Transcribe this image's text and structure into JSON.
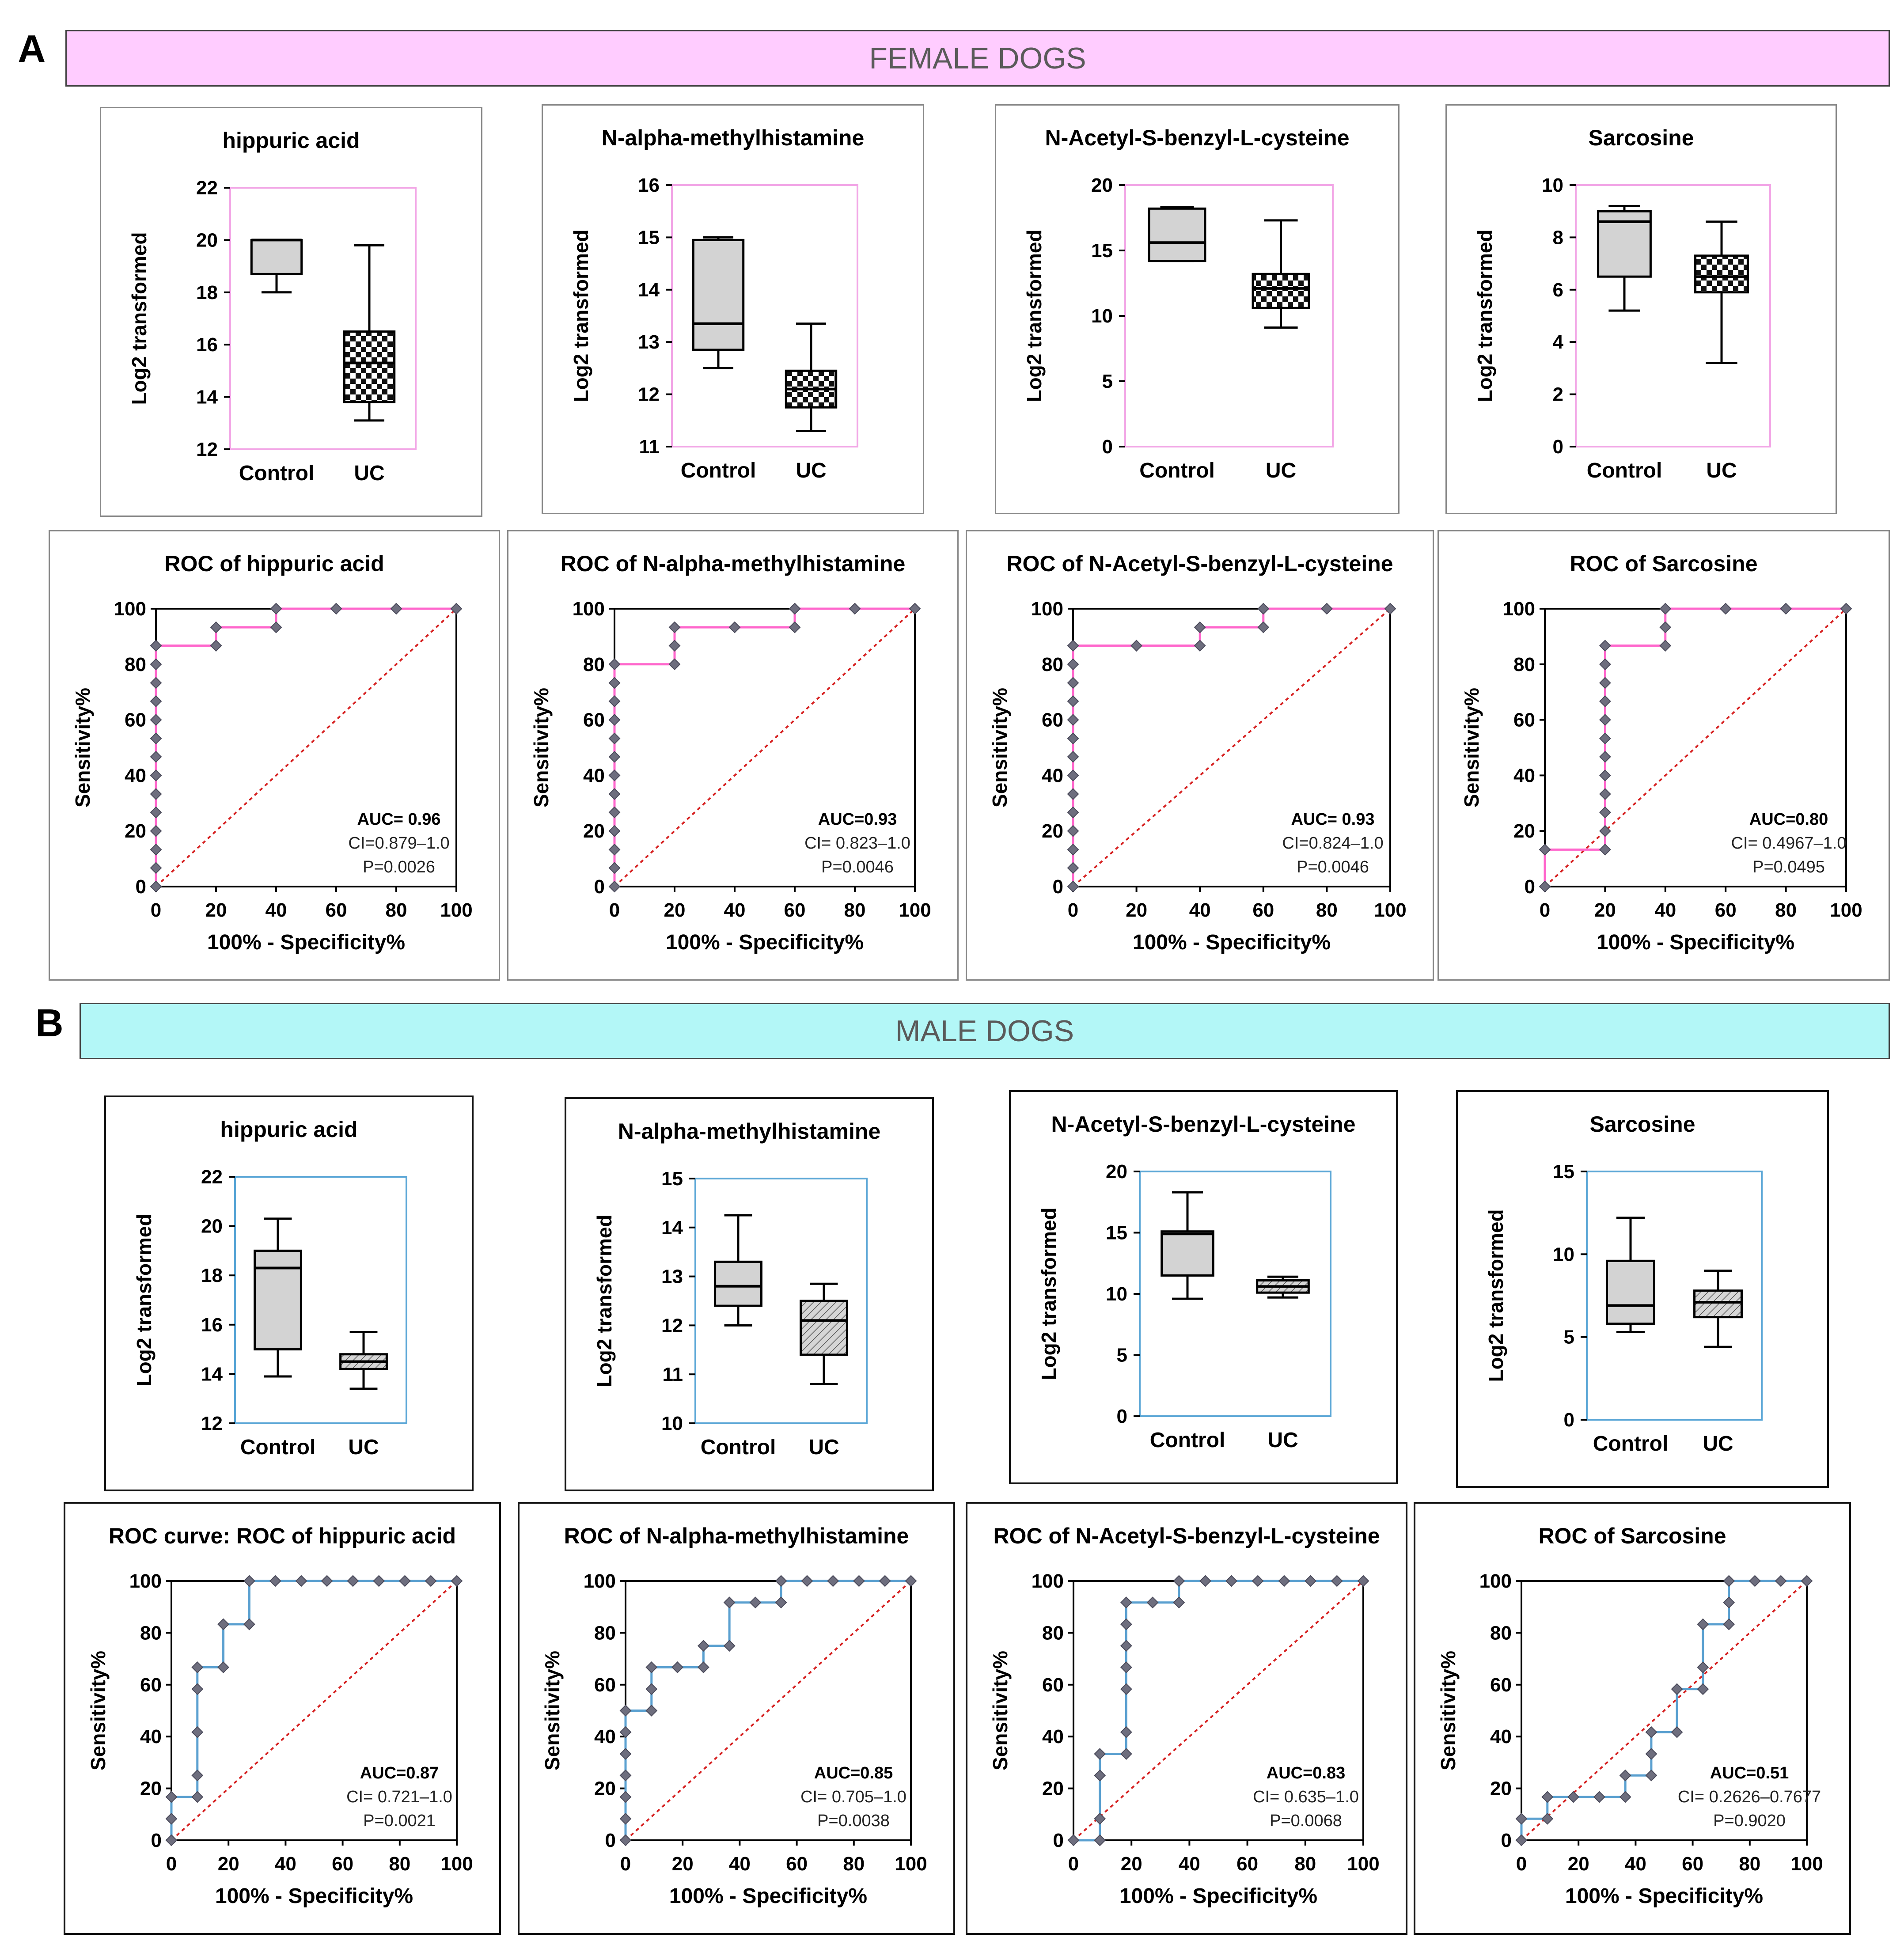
{
  "sections": {
    "A": {
      "letter": "A",
      "title": "FEMALE DOGS",
      "color": "#ffccff",
      "frame_color": "#f2a6e6",
      "curve_color": "#ff66cc"
    },
    "B": {
      "letter": "B",
      "title": "MALE DOGS",
      "color": "#b3f7f7",
      "frame_color": "#5aa6d6",
      "curve_color": "#5aa0d0"
    }
  },
  "chart_data": [
    {
      "id": "A-box-1",
      "section": "A",
      "type": "box",
      "title": "hippuric acid",
      "ylabel": "Log2 transformed",
      "ylim": [
        12,
        22
      ],
      "yticks": [
        12,
        14,
        16,
        18,
        20,
        22
      ],
      "categories": [
        "Control",
        "UC"
      ],
      "boxes": [
        {
          "name": "Control",
          "min": 18.0,
          "q1": 18.7,
          "median": 20.0,
          "q3": 20.0,
          "max": 20.0,
          "fill": "solid"
        },
        {
          "name": "UC",
          "min": 13.1,
          "q1": 13.8,
          "median": 15.3,
          "q3": 16.5,
          "max": 19.8,
          "fill": "checker"
        }
      ]
    },
    {
      "id": "A-box-2",
      "section": "A",
      "type": "box",
      "title": "N-alpha-methylhistamine",
      "ylabel": "Log2 transformed",
      "ylim": [
        11,
        16
      ],
      "yticks": [
        11,
        12,
        13,
        14,
        15,
        16
      ],
      "categories": [
        "Control",
        "UC"
      ],
      "boxes": [
        {
          "name": "Control",
          "min": 12.5,
          "q1": 12.85,
          "median": 13.35,
          "q3": 14.95,
          "max": 15.0,
          "fill": "solid"
        },
        {
          "name": "UC",
          "min": 11.3,
          "q1": 11.75,
          "median": 12.1,
          "q3": 12.45,
          "max": 13.35,
          "fill": "checker"
        }
      ]
    },
    {
      "id": "A-box-3",
      "section": "A",
      "type": "box",
      "title": "N-Acetyl-S-benzyl-L-cysteine",
      "ylabel": "Log2 transformed",
      "ylim": [
        0,
        20
      ],
      "yticks": [
        0,
        5,
        10,
        15,
        20
      ],
      "categories": [
        "Control",
        "UC"
      ],
      "boxes": [
        {
          "name": "Control",
          "min": 14.2,
          "q1": 14.2,
          "median": 15.6,
          "q3": 18.2,
          "max": 18.3,
          "fill": "solid"
        },
        {
          "name": "UC",
          "min": 9.1,
          "q1": 10.6,
          "median": 12.1,
          "q3": 13.2,
          "max": 17.3,
          "fill": "checker"
        }
      ]
    },
    {
      "id": "A-box-4",
      "section": "A",
      "type": "box",
      "title": "Sarcosine",
      "ylabel": "Log2 transformed",
      "ylim": [
        0,
        10
      ],
      "yticks": [
        0,
        2,
        4,
        6,
        8,
        10
      ],
      "categories": [
        "Control",
        "UC"
      ],
      "boxes": [
        {
          "name": "Control",
          "min": 5.2,
          "q1": 6.5,
          "median": 8.6,
          "q3": 9.0,
          "max": 9.2,
          "fill": "solid"
        },
        {
          "name": "UC",
          "min": 3.2,
          "q1": 5.9,
          "median": 6.5,
          "q3": 7.3,
          "max": 8.6,
          "fill": "checker"
        }
      ]
    },
    {
      "id": "A-roc-1",
      "section": "A",
      "type": "roc",
      "title": "ROC of hippuric acid",
      "xlabel": "100% - Specificity%",
      "ylabel": "Sensitivity%",
      "xlim": [
        0,
        100
      ],
      "ylim": [
        0,
        100
      ],
      "ticks": [
        0,
        20,
        40,
        60,
        80,
        100
      ],
      "auc": "AUC= 0.96",
      "ci": "CI=0.879–1.0",
      "p": "P=0.0026",
      "x": [
        0,
        0,
        0,
        0,
        0,
        0,
        0,
        0,
        0,
        0,
        0,
        0,
        0,
        0,
        20,
        20,
        40,
        40,
        60,
        80,
        100
      ],
      "y": [
        0,
        6.7,
        13.3,
        20,
        26.7,
        33.3,
        40,
        46.7,
        53.3,
        60,
        66.7,
        73.3,
        80,
        86.7,
        86.7,
        93.3,
        93.3,
        100,
        100,
        100,
        100
      ]
    },
    {
      "id": "A-roc-2",
      "section": "A",
      "type": "roc",
      "title": "ROC of N-alpha-methylhistamine",
      "xlabel": "100% - Specificity%",
      "ylabel": "Sensitivity%",
      "xlim": [
        0,
        100
      ],
      "ylim": [
        0,
        100
      ],
      "ticks": [
        0,
        20,
        40,
        60,
        80,
        100
      ],
      "auc": "AUC=0.93",
      "ci": "CI= 0.823–1.0",
      "p": "P=0.0046",
      "x": [
        0,
        0,
        0,
        0,
        0,
        0,
        0,
        0,
        0,
        0,
        0,
        0,
        0,
        20,
        20,
        20,
        40,
        60,
        60,
        60,
        80,
        100
      ],
      "y": [
        0,
        6.7,
        13.3,
        20,
        26.7,
        33.3,
        40,
        46.7,
        53.3,
        60,
        66.7,
        73.3,
        80,
        80,
        86.7,
        93.3,
        93.3,
        93.3,
        100,
        100,
        100,
        100
      ]
    },
    {
      "id": "A-roc-3",
      "section": "A",
      "type": "roc",
      "title": "ROC of N-Acetyl-S-benzyl-L-cysteine",
      "xlabel": "100% - Specificity%",
      "ylabel": "Sensitivity%",
      "xlim": [
        0,
        100
      ],
      "ylim": [
        0,
        100
      ],
      "ticks": [
        0,
        20,
        40,
        60,
        80,
        100
      ],
      "auc": "AUC= 0.93",
      "ci": "CI=0.824–1.0",
      "p": "P=0.0046",
      "x": [
        0,
        0,
        0,
        0,
        0,
        0,
        0,
        0,
        0,
        0,
        0,
        0,
        0,
        0,
        20,
        40,
        40,
        60,
        60,
        80,
        100
      ],
      "y": [
        0,
        6.7,
        13.3,
        20,
        26.7,
        33.3,
        40,
        46.7,
        53.3,
        60,
        66.7,
        73.3,
        80,
        86.7,
        86.7,
        86.7,
        93.3,
        93.3,
        100,
        100,
        100
      ]
    },
    {
      "id": "A-roc-4",
      "section": "A",
      "type": "roc",
      "title": "ROC of Sarcosine",
      "xlabel": "100% - Specificity%",
      "ylabel": "Sensitivity%",
      "xlim": [
        0,
        100
      ],
      "ylim": [
        0,
        100
      ],
      "ticks": [
        0,
        20,
        40,
        60,
        80,
        100
      ],
      "auc": "AUC=0.80",
      "ci": "CI= 0.4967–1.0",
      "p": "P=0.0495",
      "x": [
        0,
        0,
        20,
        20,
        20,
        20,
        20,
        20,
        20,
        20,
        20,
        20,
        20,
        20,
        40,
        40,
        40,
        60,
        80,
        100
      ],
      "y": [
        0,
        13.3,
        13.3,
        20,
        26.7,
        33.3,
        40,
        46.7,
        53.3,
        60,
        66.7,
        73.3,
        80,
        86.7,
        86.7,
        93.3,
        100,
        100,
        100,
        100
      ]
    },
    {
      "id": "B-box-1",
      "section": "B",
      "type": "box",
      "title": "hippuric acid",
      "ylabel": "Log2 transformed",
      "ylim": [
        12,
        22
      ],
      "yticks": [
        12,
        14,
        16,
        18,
        20,
        22
      ],
      "categories": [
        "Control",
        "UC"
      ],
      "boxes": [
        {
          "name": "Control",
          "min": 13.9,
          "q1": 15.0,
          "median": 18.3,
          "q3": 19.0,
          "max": 20.3,
          "fill": "solid"
        },
        {
          "name": "UC",
          "min": 13.4,
          "q1": 14.2,
          "median": 14.5,
          "q3": 14.8,
          "max": 15.7,
          "fill": "hatch"
        }
      ]
    },
    {
      "id": "B-box-2",
      "section": "B",
      "type": "box",
      "title": "N-alpha-methylhistamine",
      "ylabel": "Log2 transformed",
      "ylim": [
        10,
        15
      ],
      "yticks": [
        10,
        11,
        12,
        13,
        14,
        15
      ],
      "categories": [
        "Control",
        "UC"
      ],
      "boxes": [
        {
          "name": "Control",
          "min": 12.0,
          "q1": 12.4,
          "median": 12.8,
          "q3": 13.3,
          "max": 14.25,
          "fill": "solid"
        },
        {
          "name": "UC",
          "min": 10.8,
          "q1": 11.4,
          "median": 12.1,
          "q3": 12.5,
          "max": 12.85,
          "fill": "hatch"
        }
      ]
    },
    {
      "id": "B-box-3",
      "section": "B",
      "type": "box",
      "title": "N-Acetyl-S-benzyl-L-cysteine",
      "ylabel": "Log2 transformed",
      "ylim": [
        0,
        20
      ],
      "yticks": [
        0,
        5,
        10,
        15,
        20
      ],
      "categories": [
        "Control",
        "UC"
      ],
      "boxes": [
        {
          "name": "Control",
          "min": 9.6,
          "q1": 11.5,
          "median": 14.9,
          "q3": 15.1,
          "max": 18.3,
          "fill": "solid"
        },
        {
          "name": "UC",
          "min": 9.7,
          "q1": 10.1,
          "median": 10.6,
          "q3": 11.1,
          "max": 11.4,
          "fill": "hatch"
        }
      ]
    },
    {
      "id": "B-box-4",
      "section": "B",
      "type": "box",
      "title": "Sarcosine",
      "ylabel": "Log2 transformed",
      "ylim": [
        0,
        15
      ],
      "yticks": [
        0,
        5,
        10,
        15
      ],
      "categories": [
        "Control",
        "UC"
      ],
      "boxes": [
        {
          "name": "Control",
          "min": 5.3,
          "q1": 5.8,
          "median": 6.9,
          "q3": 9.6,
          "max": 12.2,
          "fill": "solid"
        },
        {
          "name": "UC",
          "min": 4.4,
          "q1": 6.2,
          "median": 7.1,
          "q3": 7.8,
          "max": 9.0,
          "fill": "hatch"
        }
      ]
    },
    {
      "id": "B-roc-1",
      "section": "B",
      "type": "roc",
      "title": "ROC curve: ROC of hippuric acid",
      "xlabel": "100% - Specificity%",
      "ylabel": "Sensitivity%",
      "xlim": [
        0,
        100
      ],
      "ylim": [
        0,
        100
      ],
      "ticks": [
        0,
        20,
        40,
        60,
        80,
        100
      ],
      "auc": "AUC=0.87",
      "ci": "CI= 0.721–1.0",
      "p": "P=0.0021",
      "x": [
        0,
        0,
        0,
        9.1,
        9.1,
        9.1,
        9.1,
        9.1,
        18.2,
        18.2,
        27.3,
        27.3,
        36.4,
        45.5,
        54.5,
        63.6,
        72.7,
        81.8,
        90.9,
        100
      ],
      "y": [
        0,
        8.3,
        16.7,
        16.7,
        25,
        41.7,
        58.3,
        66.7,
        66.7,
        83.3,
        83.3,
        100,
        100,
        100,
        100,
        100,
        100,
        100,
        100,
        100
      ]
    },
    {
      "id": "B-roc-2",
      "section": "B",
      "type": "roc",
      "title": "ROC of N-alpha-methylhistamine",
      "xlabel": "100% - Specificity%",
      "ylabel": "Sensitivity%",
      "xlim": [
        0,
        100
      ],
      "ylim": [
        0,
        100
      ],
      "ticks": [
        0,
        20,
        40,
        60,
        80,
        100
      ],
      "auc": "AUC=0.85",
      "ci": "CI= 0.705–1.0",
      "p": "P=0.0038",
      "x": [
        0,
        0,
        0,
        0,
        0,
        0,
        0,
        9.1,
        9.1,
        9.1,
        18.2,
        27.3,
        27.3,
        36.4,
        36.4,
        45.5,
        54.5,
        54.5,
        63.6,
        72.7,
        81.8,
        90.9,
        100
      ],
      "y": [
        0,
        8.3,
        16.7,
        25,
        33.3,
        41.7,
        50,
        50,
        58.3,
        66.7,
        66.7,
        66.7,
        75,
        75,
        91.7,
        91.7,
        91.7,
        100,
        100,
        100,
        100,
        100,
        100
      ]
    },
    {
      "id": "B-roc-3",
      "section": "B",
      "type": "roc",
      "title": "ROC of N-Acetyl-S-benzyl-L-cysteine",
      "xlabel": "100% - Specificity%",
      "ylabel": "Sensitivity%",
      "xlim": [
        0,
        100
      ],
      "ylim": [
        0,
        100
      ],
      "ticks": [
        0,
        20,
        40,
        60,
        80,
        100
      ],
      "auc": "AUC=0.83",
      "ci": "CI= 0.635–1.0",
      "p": "P=0.0068",
      "x": [
        0,
        9.1,
        9.1,
        9.1,
        9.1,
        18.2,
        18.2,
        18.2,
        18.2,
        18.2,
        18.2,
        18.2,
        27.3,
        36.4,
        36.4,
        45.5,
        54.5,
        63.6,
        72.7,
        81.8,
        90.9,
        100
      ],
      "y": [
        0,
        0,
        8.3,
        25,
        33.3,
        33.3,
        41.7,
        58.3,
        66.7,
        75,
        83.3,
        91.7,
        91.7,
        91.7,
        100,
        100,
        100,
        100,
        100,
        100,
        100,
        100
      ]
    },
    {
      "id": "B-roc-4",
      "section": "B",
      "type": "roc",
      "title": "ROC of Sarcosine",
      "xlabel": "100% - Specificity%",
      "ylabel": "Sensitivity%",
      "xlim": [
        0,
        100
      ],
      "ylim": [
        0,
        100
      ],
      "ticks": [
        0,
        20,
        40,
        60,
        80,
        100
      ],
      "auc": "AUC=0.51",
      "ci": "CI= 0.2626–0.7677",
      "p": "P=0.9020",
      "x": [
        0,
        0,
        9.1,
        9.1,
        18.2,
        27.3,
        36.4,
        36.4,
        45.5,
        45.5,
        45.5,
        54.5,
        54.5,
        63.6,
        63.6,
        63.6,
        72.7,
        72.7,
        72.7,
        81.8,
        90.9,
        100
      ],
      "y": [
        0,
        8.3,
        8.3,
        16.7,
        16.7,
        16.7,
        16.7,
        25,
        25,
        33.3,
        41.7,
        41.7,
        58.3,
        58.3,
        66.7,
        83.3,
        83.3,
        91.7,
        100,
        100,
        100,
        100
      ]
    }
  ]
}
